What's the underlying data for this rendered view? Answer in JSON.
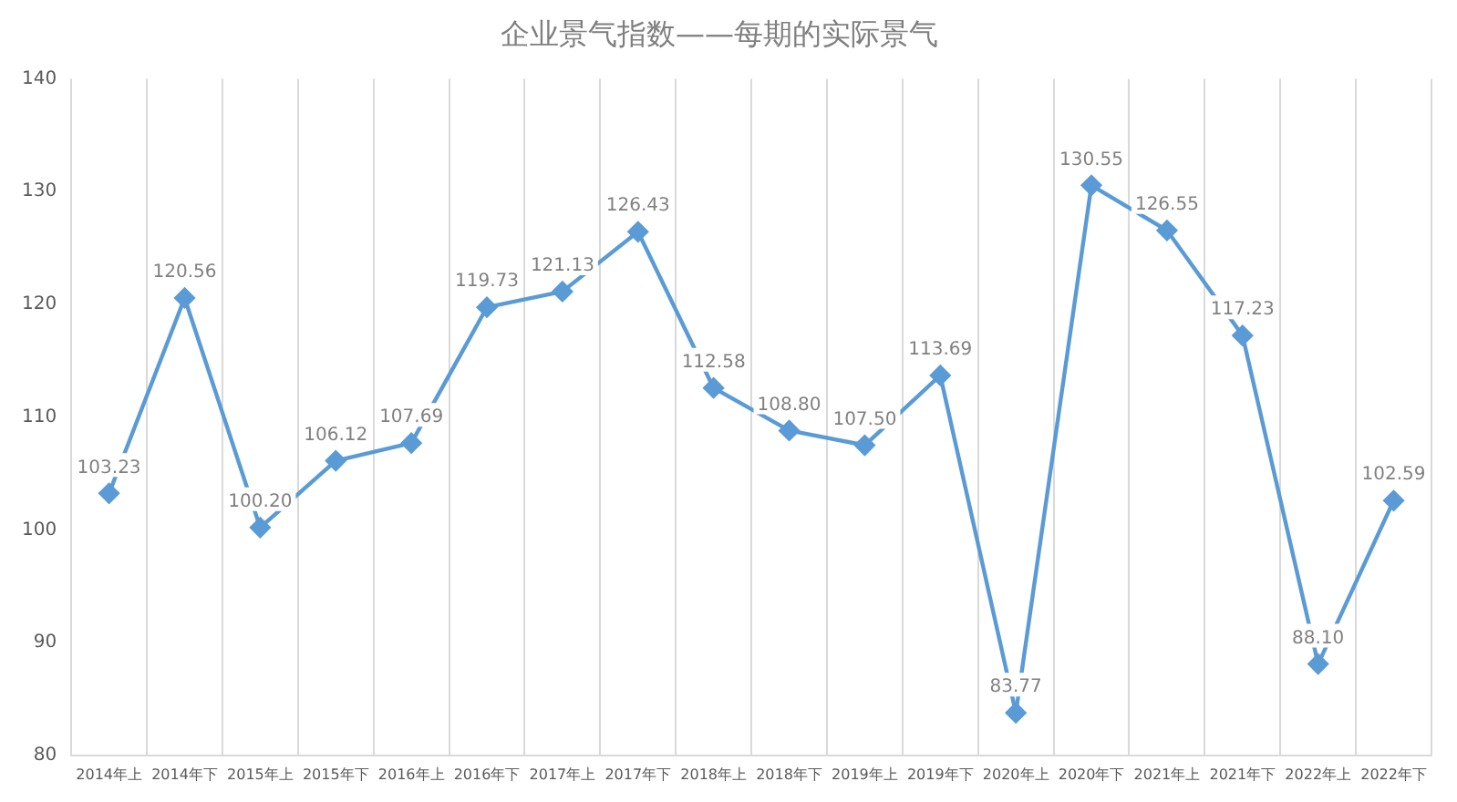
{
  "chart_data": {
    "type": "line",
    "title": "企业景气指数——每期的实际景气",
    "categories": [
      "2014年上",
      "2014年下",
      "2015年上",
      "2015年下",
      "2016年上",
      "2016年下",
      "2017年上",
      "2017年下",
      "2018年上",
      "2018年下",
      "2019年上",
      "2019年下",
      "2020年上",
      "2020年下",
      "2021年上",
      "2021年下",
      "2022年上",
      "2022年下"
    ],
    "values": [
      103.23,
      120.56,
      100.2,
      106.12,
      107.69,
      119.73,
      121.13,
      126.43,
      112.58,
      108.8,
      107.5,
      113.69,
      83.77,
      130.55,
      126.55,
      117.23,
      88.1,
      102.59
    ],
    "value_labels": [
      "103.23",
      "120.56",
      "100.20",
      "106.12",
      "107.69",
      "119.73",
      "121.13",
      "126.43",
      "112.58",
      "108.80",
      "107.50",
      "113.69",
      "83.77",
      "130.55",
      "126.55",
      "117.23",
      "88.10",
      "102.59"
    ],
    "color": "#5b9bd5",
    "marker": "diamond",
    "line_style": "solid",
    "ylim": [
      80,
      140
    ],
    "yticks": [
      80,
      90,
      100,
      110,
      120,
      130,
      140
    ],
    "grid": "x",
    "legend": false
  }
}
